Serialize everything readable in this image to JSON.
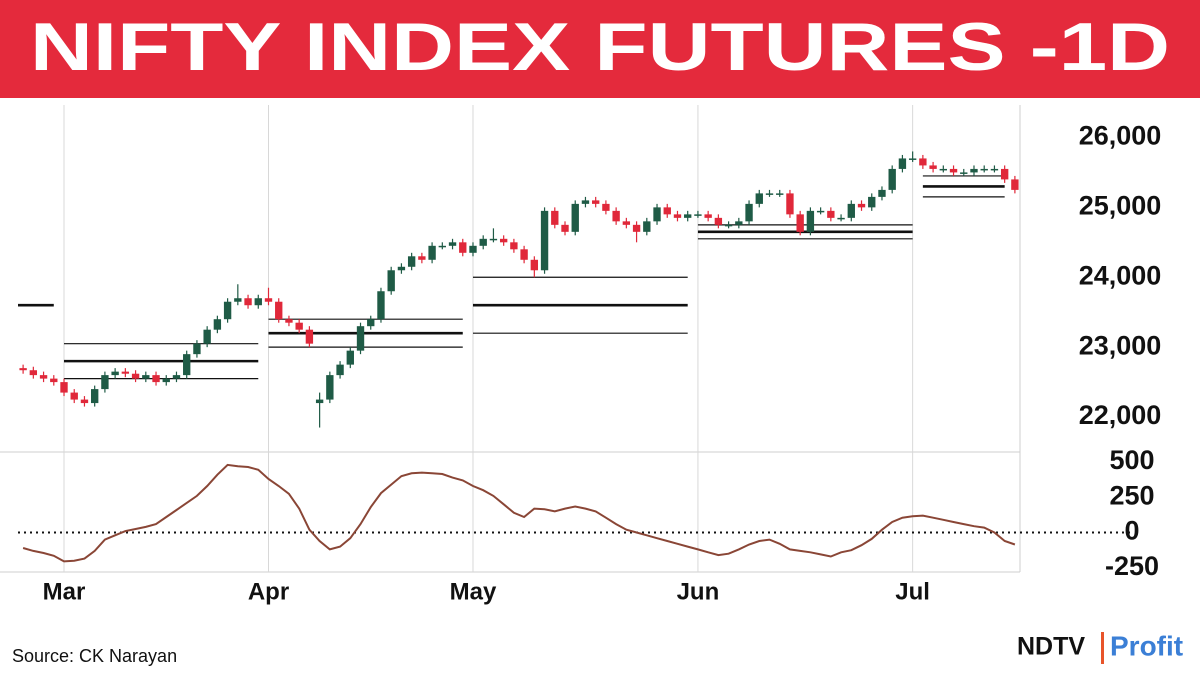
{
  "header": {
    "title": "NIFTY INDEX FUTURES -1D"
  },
  "chart_data": [
    {
      "type": "candlestick",
      "open": [
        22700,
        22670,
        22600,
        22550,
        22500,
        22350,
        22250,
        22200,
        22400,
        22600,
        22650,
        22620,
        22550,
        22600,
        22500,
        22550,
        22600,
        22900,
        23050,
        23250,
        23400,
        23650,
        23700,
        23600,
        23700,
        23650,
        23400,
        23350,
        23250,
        22200,
        22250,
        22600,
        22750,
        22950,
        23300,
        23400,
        23800,
        24100,
        24150,
        24300,
        24250,
        24450,
        24450,
        24500,
        24350,
        24450,
        24550,
        24550,
        24500,
        24400,
        24250,
        24100,
        24950,
        24750,
        24650,
        25050,
        25100,
        25050,
        24950,
        24800,
        24750,
        24650,
        24800,
        25000,
        24900,
        24850,
        24900,
        24900,
        24850,
        24750,
        24750,
        24800,
        25050,
        25200,
        25200,
        25200,
        24900,
        24650,
        24950,
        24950,
        24850,
        24850,
        25050,
        25000,
        25150,
        25250,
        25550,
        25700,
        25700,
        25600,
        25550,
        25550,
        25500,
        25500,
        25550,
        25550,
        25550,
        25400
      ],
      "high": [
        22750,
        22720,
        22650,
        22600,
        22550,
        22400,
        22300,
        22450,
        22650,
        22700,
        22700,
        22670,
        22650,
        22650,
        22600,
        22650,
        22950,
        23100,
        23300,
        23450,
        23700,
        23900,
        23750,
        23750,
        23850,
        23700,
        23450,
        23400,
        23300,
        22350,
        22650,
        22800,
        23000,
        23350,
        23450,
        23850,
        24150,
        24200,
        24350,
        24350,
        24500,
        24500,
        24550,
        24550,
        24500,
        24600,
        24700,
        24600,
        24550,
        24450,
        24300,
        25000,
        25000,
        24800,
        25100,
        25150,
        25150,
        25100,
        25000,
        24850,
        24800,
        24850,
        25050,
        25050,
        24950,
        24950,
        24950,
        24950,
        24900,
        24800,
        24850,
        25100,
        25250,
        25250,
        25250,
        25250,
        24950,
        25000,
        25000,
        25000,
        24900,
        25100,
        25100,
        25200,
        25300,
        25600,
        25750,
        25800,
        25750,
        25650,
        25600,
        25600,
        25550,
        25600,
        25600,
        25600,
        25600,
        25450
      ],
      "low": [
        22620,
        22550,
        22500,
        22450,
        22300,
        22200,
        22150,
        22150,
        22350,
        22550,
        22570,
        22500,
        22500,
        22450,
        22450,
        22500,
        22550,
        22850,
        23000,
        23200,
        23350,
        23600,
        23550,
        23550,
        23600,
        23350,
        23300,
        23200,
        23000,
        21850,
        22200,
        22550,
        22700,
        22900,
        23250,
        23350,
        23750,
        24050,
        24100,
        24200,
        24200,
        24400,
        24400,
        24300,
        24300,
        24400,
        24500,
        24450,
        24350,
        24200,
        24000,
        24050,
        24700,
        24600,
        24600,
        25000,
        25000,
        24900,
        24750,
        24700,
        24500,
        24600,
        24750,
        24850,
        24800,
        24800,
        24850,
        24800,
        24700,
        24700,
        24700,
        24750,
        25000,
        25150,
        25150,
        24850,
        24600,
        24600,
        24900,
        24800,
        24800,
        24800,
        24950,
        24950,
        25100,
        25200,
        25500,
        25650,
        25550,
        25500,
        25500,
        25450,
        25450,
        25450,
        25500,
        25500,
        25350,
        25200
      ],
      "close": [
        22670,
        22600,
        22550,
        22500,
        22350,
        22250,
        22200,
        22400,
        22600,
        22650,
        22620,
        22550,
        22600,
        22500,
        22550,
        22600,
        22900,
        23050,
        23250,
        23400,
        23650,
        23700,
        23600,
        23700,
        23650,
        23400,
        23350,
        23250,
        23050,
        22250,
        22600,
        22750,
        22950,
        23300,
        23400,
        23800,
        24100,
        24150,
        24300,
        24250,
        24450,
        24450,
        24500,
        24350,
        24450,
        24550,
        24550,
        24500,
        24400,
        24250,
        24100,
        24950,
        24750,
        24650,
        25050,
        25100,
        25050,
        24950,
        24800,
        24750,
        24650,
        24800,
        25000,
        24900,
        24850,
        24900,
        24900,
        24850,
        24750,
        24750,
        24800,
        25050,
        25200,
        25200,
        25200,
        24900,
        24650,
        24950,
        24950,
        24850,
        24850,
        25050,
        25000,
        25150,
        25250,
        25550,
        25700,
        25700,
        25600,
        25550,
        25550,
        25500,
        25500,
        25550,
        25550,
        25550,
        25400,
        25250
      ],
      "up_color": "#1f5b46",
      "down_color": "#e0283a",
      "xlim": [
        -0.5,
        97.5
      ],
      "xticks": [
        {
          "value": 4,
          "label": "Mar"
        },
        {
          "value": 24,
          "label": "Apr"
        },
        {
          "value": 44,
          "label": "May"
        },
        {
          "value": 66,
          "label": "Jun"
        },
        {
          "value": 87,
          "label": "Jul"
        }
      ],
      "ylim": [
        21500,
        26250
      ],
      "yticks": [
        {
          "value": 26000,
          "label": "26,000"
        },
        {
          "value": 25000,
          "label": "25,000"
        },
        {
          "value": 24000,
          "label": "24,000"
        },
        {
          "value": 23000,
          "label": "23,000"
        },
        {
          "value": 22000,
          "label": "22,000"
        }
      ],
      "grid": true,
      "levels": [
        {
          "start": -0.5,
          "end": 3,
          "value": 23600,
          "weight": "thick"
        },
        {
          "start": 4,
          "end": 23,
          "value": 23050,
          "weight": "thin"
        },
        {
          "start": 4,
          "end": 23,
          "value": 22800,
          "weight": "thick"
        },
        {
          "start": 4,
          "end": 23,
          "value": 22550,
          "weight": "thin"
        },
        {
          "start": 24,
          "end": 43,
          "value": 23400,
          "weight": "thin"
        },
        {
          "start": 24,
          "end": 43,
          "value": 23200,
          "weight": "thick"
        },
        {
          "start": 24,
          "end": 43,
          "value": 23000,
          "weight": "thin"
        },
        {
          "start": 44,
          "end": 65,
          "value": 24000,
          "weight": "thin"
        },
        {
          "start": 44,
          "end": 65,
          "value": 23600,
          "weight": "thick"
        },
        {
          "start": 44,
          "end": 65,
          "value": 23200,
          "weight": "thin"
        },
        {
          "start": 66,
          "end": 87,
          "value": 24750,
          "weight": "thin"
        },
        {
          "start": 66,
          "end": 87,
          "value": 24650,
          "weight": "thick"
        },
        {
          "start": 66,
          "end": 87,
          "value": 24550,
          "weight": "thin"
        },
        {
          "start": 88,
          "end": 96,
          "value": 25450,
          "weight": "thin"
        },
        {
          "start": 88,
          "end": 96,
          "value": 25300,
          "weight": "thick"
        },
        {
          "start": 88,
          "end": 96,
          "value": 25150,
          "weight": "thin"
        }
      ]
    },
    {
      "type": "line",
      "values": [
        -110,
        -130,
        -145,
        -165,
        -205,
        -200,
        -185,
        -130,
        -50,
        -20,
        10,
        25,
        40,
        60,
        110,
        160,
        210,
        260,
        330,
        410,
        480,
        470,
        465,
        445,
        380,
        330,
        275,
        170,
        20,
        -60,
        -120,
        -100,
        -40,
        60,
        180,
        280,
        340,
        400,
        420,
        425,
        420,
        415,
        390,
        370,
        330,
        300,
        260,
        200,
        140,
        110,
        170,
        165,
        150,
        170,
        185,
        170,
        150,
        105,
        60,
        20,
        0,
        -20,
        -40,
        -60,
        -80,
        -100,
        -120,
        -140,
        -160,
        -150,
        -120,
        -85,
        -60,
        -50,
        -80,
        -120,
        -130,
        -140,
        -155,
        -170,
        -140,
        -125,
        -90,
        -45,
        20,
        75,
        105,
        115,
        120,
        105,
        90,
        75,
        60,
        45,
        35,
        0,
        -60,
        -85
      ],
      "color": "#8a4636",
      "xlim": [
        -0.5,
        97.5
      ],
      "ylim": [
        -280,
        550
      ],
      "yticks": [
        500,
        250,
        0,
        -250
      ],
      "zero_line": 0
    }
  ],
  "source": "Source: CK Narayan",
  "logo": {
    "left": "NDTV",
    "right": "Profit"
  }
}
